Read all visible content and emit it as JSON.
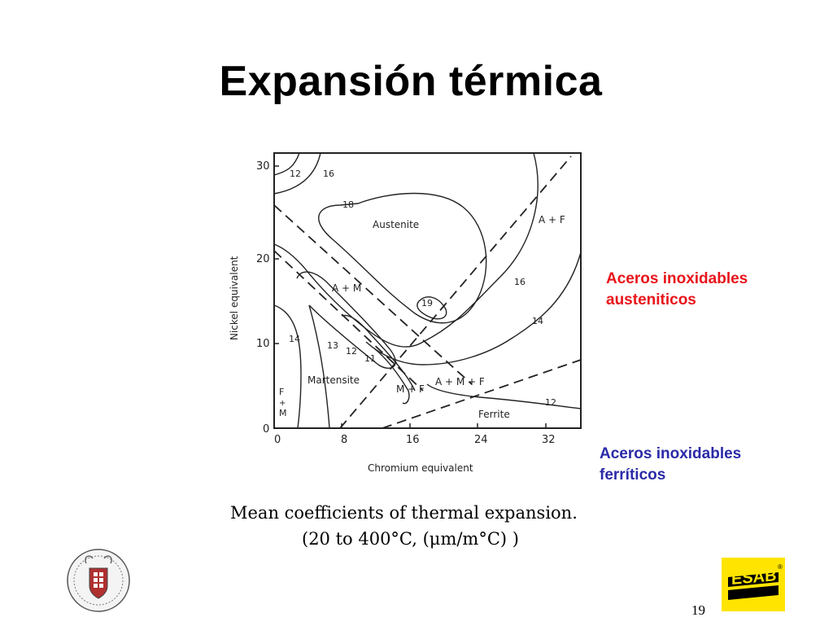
{
  "slide": {
    "title": "Expansión térmica",
    "page_number": "19"
  },
  "diagram": {
    "ylabel": "Nickel equivalent",
    "xlabel": "Chromium equivalent",
    "y_ticks": [
      "0",
      "10",
      "20",
      "30"
    ],
    "x_ticks": [
      "0",
      "8",
      "16",
      "24",
      "32"
    ],
    "regions": {
      "austenite": "Austenite",
      "martensite": "Martensite",
      "ferrite": "Ferrite",
      "a_plus_f": "A + F",
      "a_plus_m": "A + M",
      "a_m_f": "A + M + F",
      "m_plus_f": "M + F",
      "f_top": "F",
      "f_plus": "+",
      "f_m": "M"
    },
    "contour_labels": {
      "c12_top": "12",
      "c16_top": "16",
      "c18": "18",
      "c19": "19",
      "c16_right": "16",
      "c14_right": "14",
      "c12_right": "12",
      "c14_left": "14",
      "c13": "13",
      "c12_mid": "12",
      "c11": "11"
    },
    "caption_line1": "Mean  coefficients  of  thermal  expansion.",
    "caption_line2": "(20  to  400°C,  (μm/m°C)  )"
  },
  "annotations": {
    "austenitic_line1": "Aceros inoxidables",
    "austenitic_line2": "austeniticos",
    "ferritic_line1": "Aceros inoxidables",
    "ferritic_line2": "ferríticos"
  },
  "colors": {
    "austenitic_note": "#e8141b",
    "ferritic_note": "#2a2aa8",
    "esab_yellow": "#ffe400"
  },
  "logos": {
    "left": "university-seal-icon",
    "right_text": "ESAB",
    "right_registered": "®"
  }
}
